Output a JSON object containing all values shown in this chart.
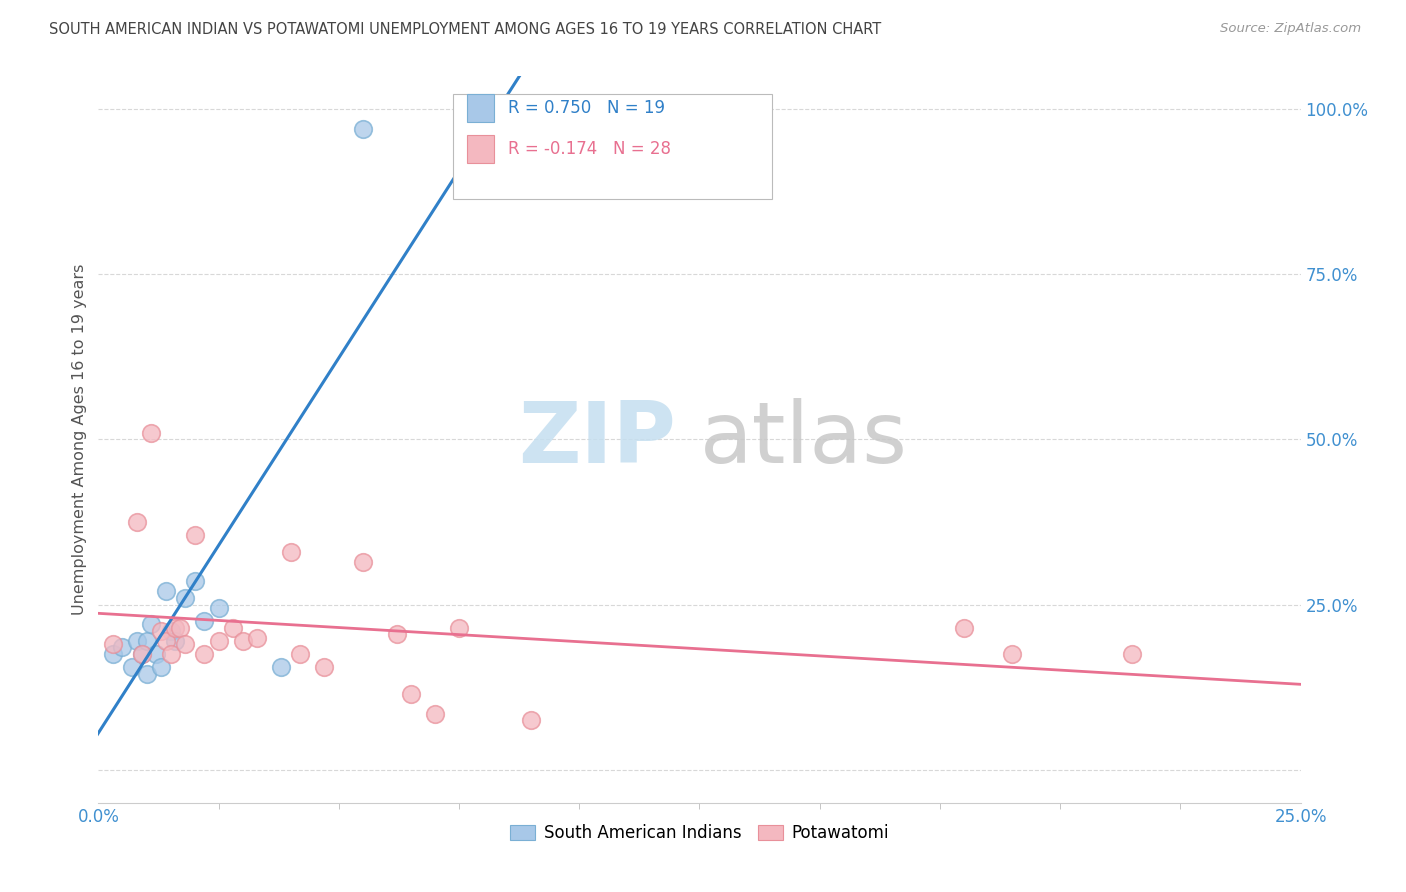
{
  "title": "SOUTH AMERICAN INDIAN VS POTAWATOMI UNEMPLOYMENT AMONG AGES 16 TO 19 YEARS CORRELATION CHART",
  "source": "Source: ZipAtlas.com",
  "ylabel": "Unemployment Among Ages 16 to 19 years",
  "yticks": [
    0.0,
    0.25,
    0.5,
    0.75,
    1.0
  ],
  "ytick_labels": [
    "",
    "25.0%",
    "50.0%",
    "75.0%",
    "100.0%"
  ],
  "xlim": [
    0.0,
    0.25
  ],
  "ylim": [
    -0.05,
    1.05
  ],
  "legend_blue_label": "South American Indians",
  "legend_pink_label": "Potawatomi",
  "R_blue": 0.75,
  "N_blue": 19,
  "R_pink": -0.174,
  "N_pink": 28,
  "blue_scatter_color": "#a8c8e8",
  "blue_scatter_edge": "#7aafd4",
  "pink_scatter_color": "#f4b8c0",
  "pink_scatter_edge": "#e8909a",
  "blue_line_color": "#3080c8",
  "pink_line_color": "#e87090",
  "tick_label_color": "#4090d0",
  "scatter_blue_x": [
    0.003,
    0.005,
    0.007,
    0.008,
    0.009,
    0.01,
    0.01,
    0.011,
    0.012,
    0.013,
    0.014,
    0.015,
    0.016,
    0.018,
    0.02,
    0.022,
    0.025,
    0.038,
    0.055
  ],
  "scatter_blue_y": [
    0.175,
    0.185,
    0.155,
    0.195,
    0.175,
    0.195,
    0.145,
    0.22,
    0.175,
    0.155,
    0.27,
    0.21,
    0.195,
    0.26,
    0.285,
    0.225,
    0.245,
    0.155,
    0.97
  ],
  "scatter_pink_x": [
    0.003,
    0.008,
    0.009,
    0.011,
    0.013,
    0.014,
    0.015,
    0.016,
    0.017,
    0.018,
    0.02,
    0.022,
    0.025,
    0.028,
    0.03,
    0.033,
    0.04,
    0.042,
    0.047,
    0.055,
    0.062,
    0.065,
    0.07,
    0.075,
    0.09,
    0.18,
    0.19,
    0.215
  ],
  "scatter_pink_y": [
    0.19,
    0.375,
    0.175,
    0.51,
    0.21,
    0.195,
    0.175,
    0.215,
    0.215,
    0.19,
    0.355,
    0.175,
    0.195,
    0.215,
    0.195,
    0.2,
    0.33,
    0.175,
    0.155,
    0.315,
    0.205,
    0.115,
    0.085,
    0.215,
    0.075,
    0.215,
    0.175,
    0.175
  ],
  "background_color": "#ffffff",
  "grid_color": "#d8d8d8",
  "watermark_zip_color": "#c5dff0",
  "watermark_atlas_color": "#c8c8c8"
}
